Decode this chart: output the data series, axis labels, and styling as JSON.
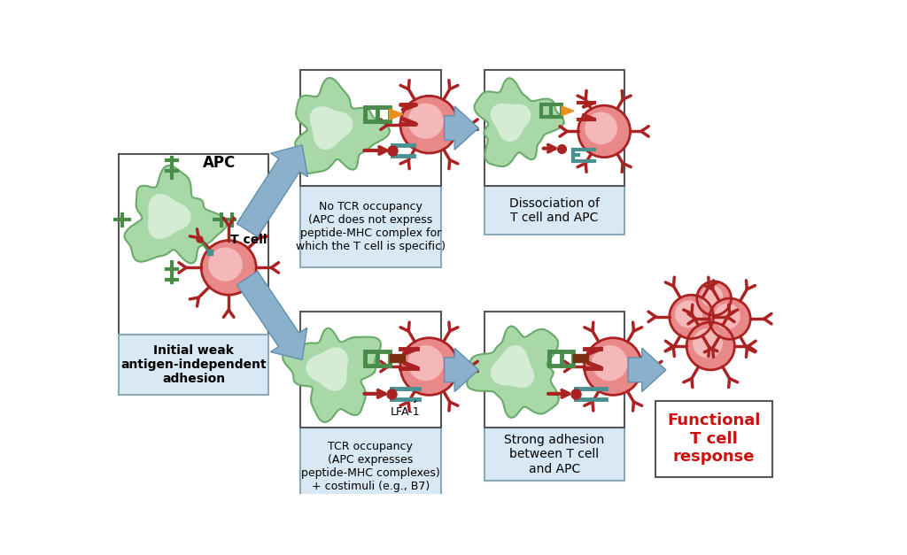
{
  "bg_color": "#ffffff",
  "apc_fill": "#a8d8a8",
  "apc_inner": "#d4ecd4",
  "apc_edge": "#6aaa6a",
  "tcell_fill": "#e88888",
  "tcell_inner": "#f4b8b8",
  "tcell_edge": "#aa2222",
  "green_dark": "#4a8a4a",
  "green_mid": "#6aaa6a",
  "teal": "#4a9090",
  "teal_light": "#70b8b0",
  "dark_red": "#aa2222",
  "orange": "#e89020",
  "brown": "#7a3010",
  "arrow_fill": "#8ab0cc",
  "arrow_edge": "#6090aa",
  "box_white_edge": "#888888",
  "box_blue_fill": "#d8e8f4",
  "box_blue_edge": "#8aaabb",
  "text_red": "#cc1111",
  "text_black": "#111111",
  "labels": {
    "apc": "APC",
    "tcell": "T cell",
    "initial": "Initial weak\nantigen-independent\nadhesion",
    "no_tcr": "No TCR occupancy\n(APC does not express\npeptide-MHC complex for\nwhich the T cell is specific)",
    "dissociation": "Dissociation of\nT cell and APC",
    "lfa1": "LFA-1",
    "tcr_occ": "TCR occupancy\n(APC expresses\npeptide-MHC complexes)\n+ costimuli (e.g., B7)",
    "strong": "Strong adhesion\nbetween T cell\nand APC",
    "functional": "Functional\nT cell\nresponse"
  }
}
